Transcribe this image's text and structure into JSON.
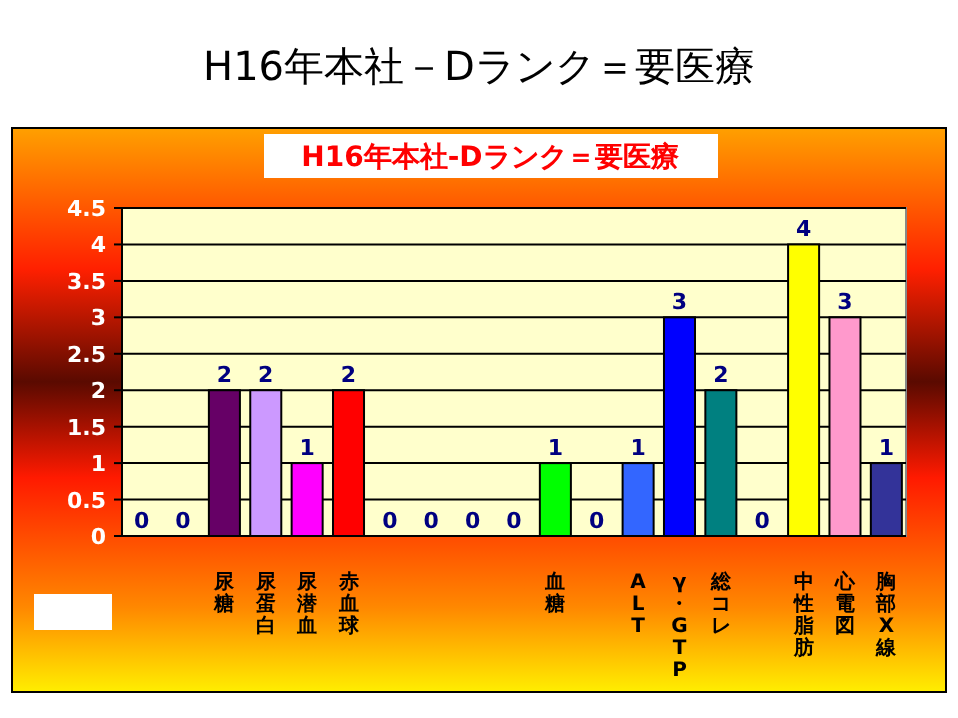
{
  "chart_data": {
    "type": "bar",
    "title": "H16年本社－Dランク＝要医療",
    "subtitle": "H16年本社-Dランク＝要医療",
    "categories": [
      null,
      null,
      "尿糖",
      "尿蛋白",
      "尿潜血",
      "赤血球",
      null,
      null,
      null,
      null,
      "血糖",
      null,
      "ALT",
      "γ・GTP",
      "総コレ",
      null,
      "中性脂肪",
      "心電図",
      "胸部X線"
    ],
    "values": [
      0,
      0,
      2,
      2,
      1,
      2,
      0,
      0,
      0,
      0,
      1,
      0,
      1,
      3,
      2,
      0,
      4,
      3,
      1
    ],
    "colors": [
      "#9999ff",
      "#9999ff",
      "#660066",
      "#cc99ff",
      "#ff00ff",
      "#ff0000",
      "#9999ff",
      "#9999ff",
      "#9999ff",
      "#9999ff",
      "#00ff00",
      "#9999ff",
      "#3366ff",
      "#0000ff",
      "#008080",
      "#9999ff",
      "#ffff00",
      "#ff99cc",
      "#333399"
    ],
    "ylim": [
      0,
      4.5
    ],
    "yticks": [
      0,
      0.5,
      1,
      1.5,
      2,
      2.5,
      3,
      3.5,
      4,
      4.5
    ],
    "grid": "y",
    "data_labels": true,
    "legend": false
  }
}
